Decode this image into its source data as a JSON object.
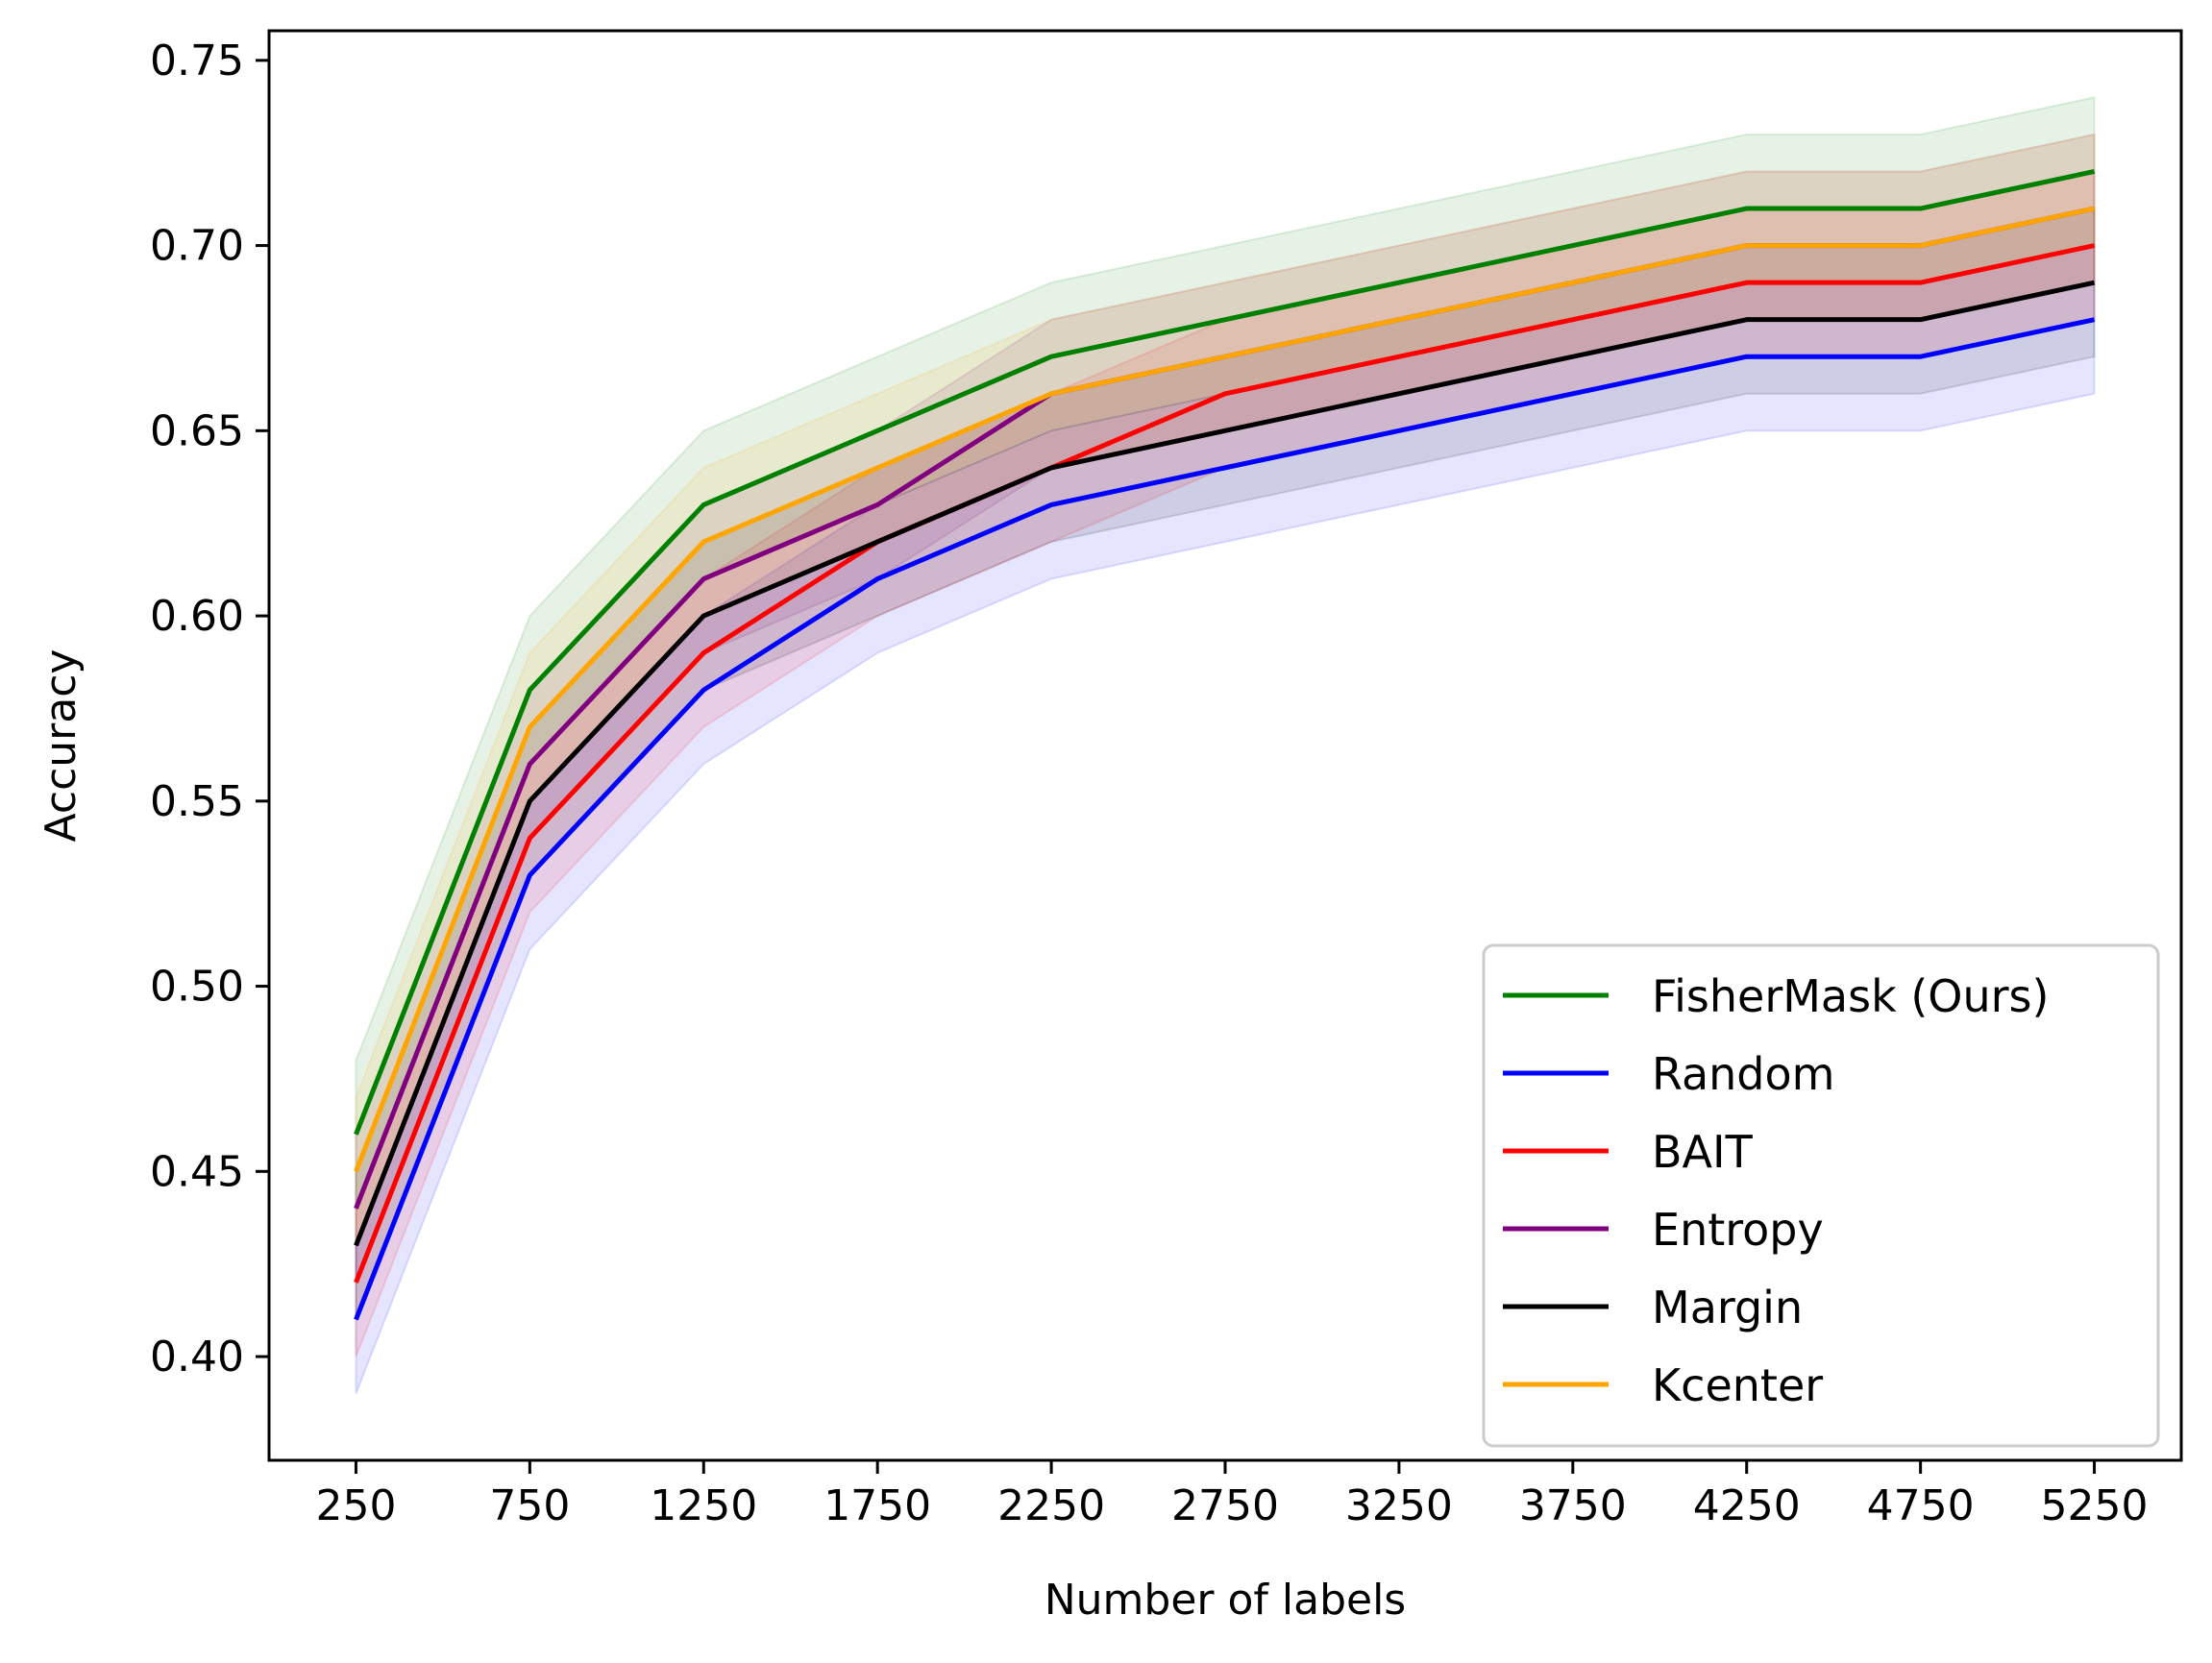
{
  "chart_data": {
    "type": "line",
    "xlabel": "Number of labels",
    "ylabel": "Accuracy",
    "xlim": [
      0,
      5500
    ],
    "ylim": [
      0.372,
      0.758
    ],
    "x_ticks": [
      250,
      750,
      1250,
      1750,
      2250,
      2750,
      3250,
      3750,
      4250,
      4750,
      5250
    ],
    "x_tick_labels": [
      "250",
      "750",
      "1250",
      "1750",
      "2250",
      "2750",
      "3250",
      "3750",
      "4250",
      "4750",
      "5250"
    ],
    "y_ticks": [
      0.4,
      0.45,
      0.5,
      0.55,
      0.6,
      0.65,
      0.7,
      0.75
    ],
    "y_tick_labels": [
      "0.40",
      "0.45",
      "0.50",
      "0.55",
      "0.60",
      "0.65",
      "0.70",
      "0.75"
    ],
    "grid": false,
    "legend_position": "bottom-right",
    "x": [
      250,
      750,
      1250,
      1750,
      2250,
      2750,
      4250,
      4750,
      5250
    ],
    "series": [
      {
        "name": "FisherMask (Ours)",
        "color": "#008000",
        "values": [
          0.46,
          0.58,
          0.63,
          0.65,
          0.67,
          0.68,
          0.71,
          0.71,
          0.72
        ],
        "lower": [
          0.44,
          0.56,
          0.61,
          0.63,
          0.65,
          0.66,
          0.69,
          0.69,
          0.7
        ],
        "upper": [
          0.48,
          0.6,
          0.65,
          0.67,
          0.69,
          0.7,
          0.73,
          0.73,
          0.74
        ]
      },
      {
        "name": "Random",
        "color": "#0000ff",
        "values": [
          0.41,
          0.53,
          0.58,
          0.61,
          0.63,
          0.64,
          0.67,
          0.67,
          0.68
        ],
        "lower": [
          0.39,
          0.51,
          0.56,
          0.59,
          0.61,
          0.62,
          0.65,
          0.65,
          0.66
        ],
        "upper": [
          0.43,
          0.55,
          0.6,
          0.63,
          0.65,
          0.66,
          0.69,
          0.69,
          0.7
        ]
      },
      {
        "name": "BAIT",
        "color": "#ff0000",
        "values": [
          0.42,
          0.54,
          0.59,
          0.62,
          0.64,
          0.66,
          0.69,
          0.69,
          0.7
        ],
        "lower": [
          0.4,
          0.52,
          0.57,
          0.6,
          0.62,
          0.64,
          0.67,
          0.67,
          0.68
        ],
        "upper": [
          0.44,
          0.56,
          0.61,
          0.64,
          0.66,
          0.68,
          0.71,
          0.71,
          0.72
        ]
      },
      {
        "name": "Entropy",
        "color": "#800080",
        "values": [
          0.44,
          0.56,
          0.61,
          0.63,
          0.66,
          0.67,
          0.7,
          0.7,
          0.71
        ],
        "lower": [
          0.42,
          0.54,
          0.59,
          0.61,
          0.64,
          0.65,
          0.68,
          0.68,
          0.69
        ],
        "upper": [
          0.46,
          0.58,
          0.63,
          0.65,
          0.68,
          0.69,
          0.72,
          0.72,
          0.73
        ]
      },
      {
        "name": "Margin",
        "color": "#000000",
        "values": [
          0.43,
          0.55,
          0.6,
          0.62,
          0.64,
          0.65,
          0.68,
          0.68,
          0.69
        ],
        "lower": [
          0.41,
          0.53,
          0.58,
          0.6,
          0.62,
          0.63,
          0.66,
          0.66,
          0.67
        ],
        "upper": [
          0.45,
          0.57,
          0.62,
          0.64,
          0.66,
          0.67,
          0.7,
          0.7,
          0.71
        ]
      },
      {
        "name": "Kcenter",
        "color": "#ffa500",
        "values": [
          0.45,
          0.57,
          0.62,
          0.64,
          0.66,
          0.67,
          0.7,
          0.7,
          0.71
        ],
        "lower": [
          0.43,
          0.55,
          0.6,
          0.62,
          0.64,
          0.65,
          0.68,
          0.68,
          0.69
        ],
        "upper": [
          0.47,
          0.59,
          0.64,
          0.66,
          0.68,
          0.69,
          0.72,
          0.72,
          0.73
        ]
      }
    ]
  }
}
